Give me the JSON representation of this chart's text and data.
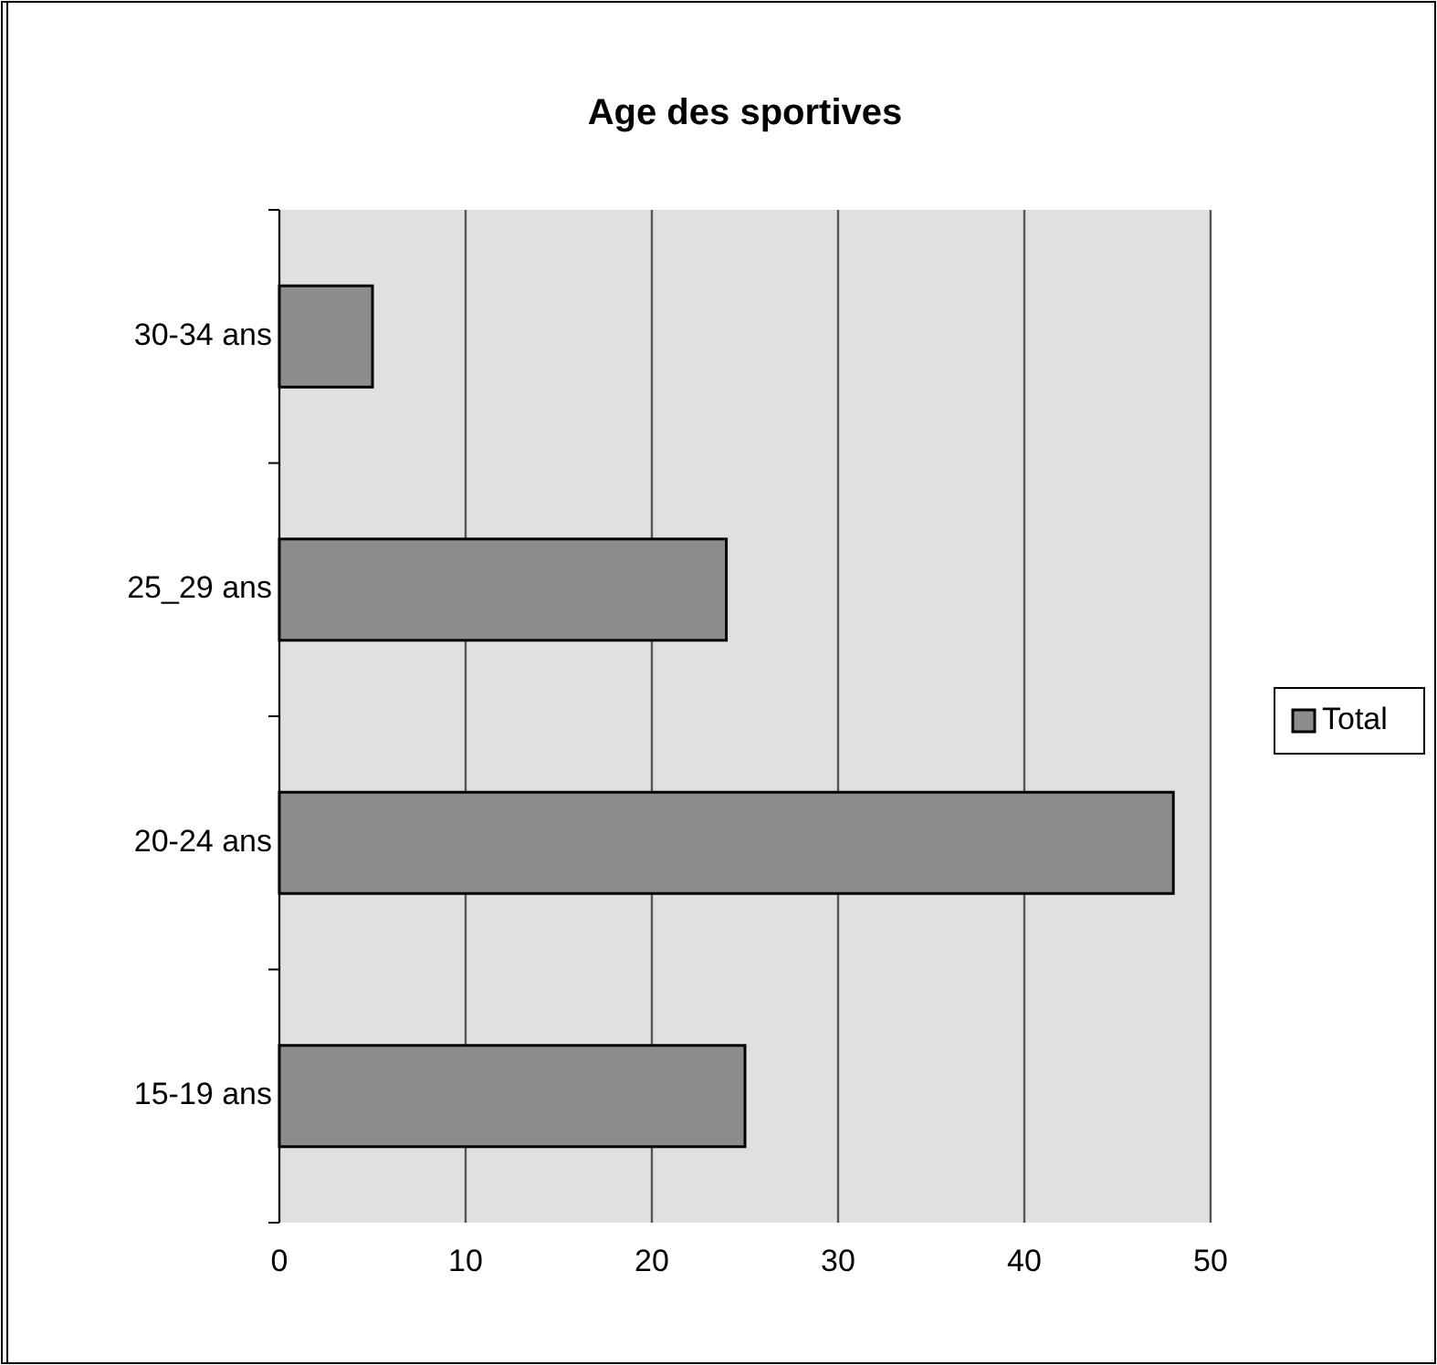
{
  "chart_data": {
    "type": "bar",
    "orientation": "horizontal",
    "title": "Age des sportives",
    "categories": [
      "30-34 ans",
      "25_29 ans",
      "20-24 ans",
      "15-19 ans"
    ],
    "series": [
      {
        "name": "Total",
        "color": "#8c8c8c",
        "values": [
          5,
          24,
          48,
          25
        ]
      }
    ],
    "xlim": [
      0,
      50
    ],
    "xticks": [
      0,
      10,
      20,
      30,
      40,
      50
    ],
    "grid": "x",
    "legend": "right"
  }
}
